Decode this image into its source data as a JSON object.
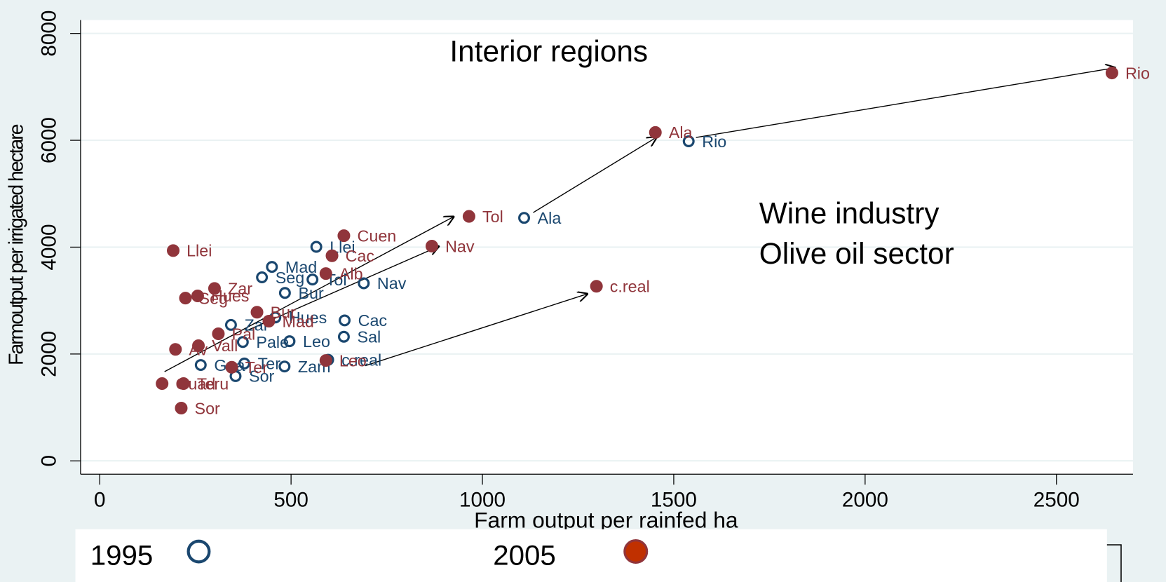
{
  "chart_data": {
    "type": "scatter",
    "title": "Interior regions",
    "annotations": [
      "Wine industry",
      "Olive oil sector"
    ],
    "xlabel": "Farm output per rainfed ha",
    "ylabel": "Farmoutput per irrigated hectare",
    "xlim": [
      -50,
      2700
    ],
    "ylim": [
      -250,
      8250
    ],
    "xticks": [
      0,
      500,
      1000,
      1500,
      2000,
      2500
    ],
    "yticks": [
      0,
      2000,
      4000,
      6000,
      8000
    ],
    "grid": true,
    "series": [
      {
        "name": "1995",
        "color": "#1a476f",
        "filled": false,
        "labels": [
          "Rio",
          "Ala",
          "Llei",
          "Mad",
          "Seg",
          "Tol",
          "Nav",
          "Bur",
          "Cac",
          "Sal",
          "Leo",
          "Pale",
          "Zar",
          "Hues",
          "Gua",
          "Ter",
          "Zam",
          "Sor",
          "c.real"
        ],
        "x": [
          1539,
          1109,
          566,
          450,
          424,
          556,
          690,
          484,
          640,
          638,
          496,
          374,
          343,
          459,
          264,
          378,
          483,
          355,
          597
        ],
        "values": [
          5981,
          4548,
          4006,
          3630,
          3435,
          3394,
          3324,
          3143,
          2629,
          2323,
          2239,
          2225,
          2545,
          2684,
          1794,
          1822,
          1766,
          1586,
          1892
        ]
      },
      {
        "name": "2005",
        "color": "#90353b",
        "filled": true,
        "labels": [
          "Rio",
          "Ala",
          "Tol",
          "Nav",
          "Cuen",
          "Cac",
          "Llei",
          "c.real",
          "Zar",
          "Hues",
          "Seg",
          "Alb",
          "Bur",
          "Mad",
          "Pal",
          "Vall",
          "Av",
          "Ter",
          "Leo",
          "Guad",
          "Teru",
          "Sor"
        ],
        "x": [
          2645,
          1452,
          965,
          868,
          638,
          607,
          192,
          1298,
          300,
          256,
          224,
          591,
          411,
          442,
          310,
          258,
          198,
          345,
          591,
          163,
          219,
          213
        ],
        "values": [
          7260,
          6147,
          4576,
          4019,
          4214,
          3839,
          3936,
          3268,
          3227,
          3088,
          3046,
          3505,
          2782,
          2615,
          2378,
          2156,
          2086,
          1752,
          1878,
          1446,
          1446,
          987
        ]
      }
    ]
  }
}
